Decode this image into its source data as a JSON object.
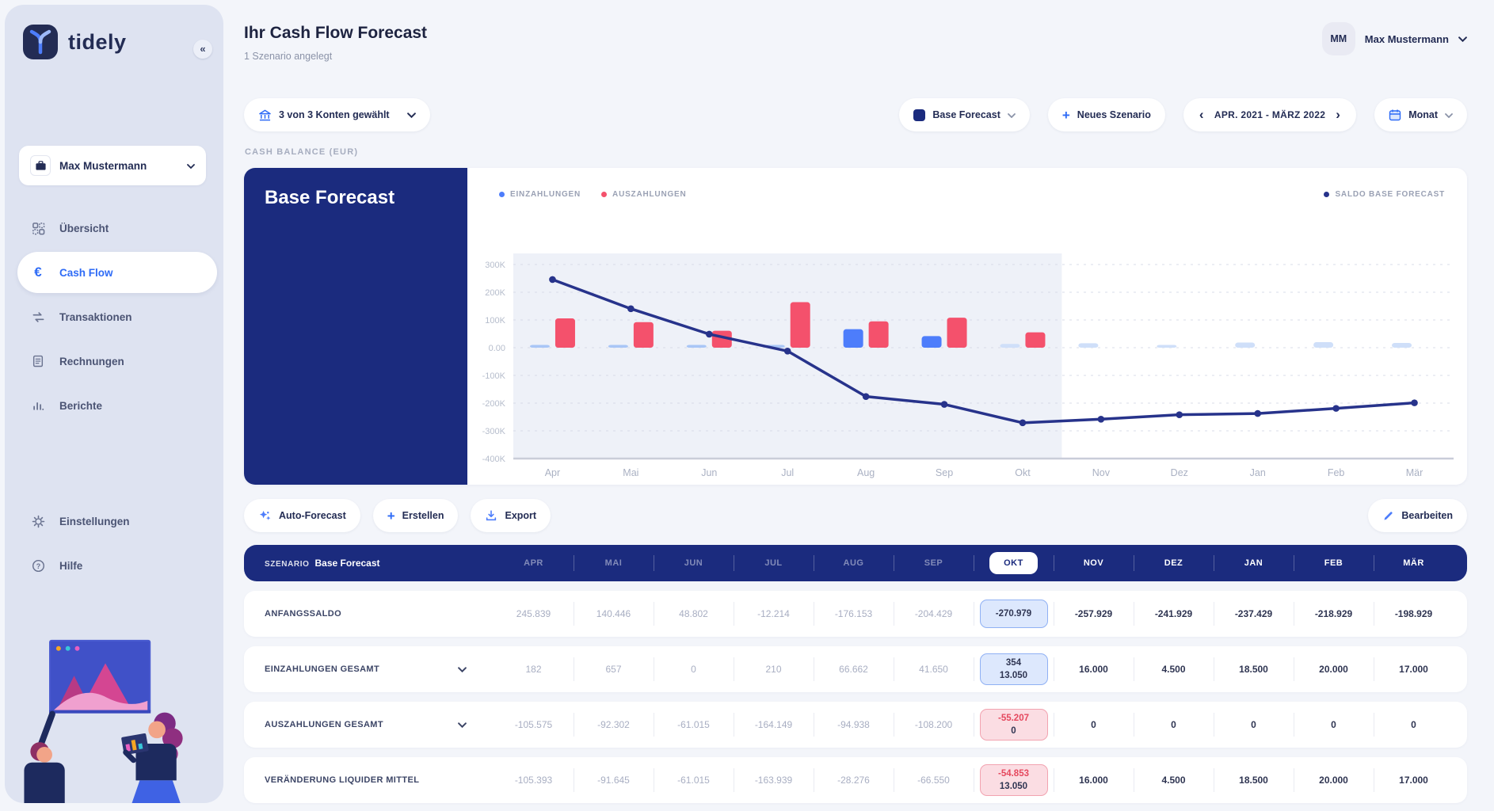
{
  "brand": {
    "name": "tidely"
  },
  "icons": {
    "collapse": "«",
    "plus": "+",
    "chevron_prev": "‹",
    "chevron_next": "›",
    "euro": "€",
    "scenario_swatch_color": "#1b2b7e"
  },
  "colors": {
    "navy": "#1b2b7e",
    "accent_blue": "#4d7dfb",
    "red": "#f4516c",
    "muted_bar_blue": "#cfdff9",
    "sidebar_bg": "#dee3f1"
  },
  "sidebar": {
    "workspace": {
      "label": "Max Mustermann"
    },
    "items": [
      {
        "id": "uebersicht",
        "label": "Übersicht",
        "icon": "grid-icon",
        "active": false
      },
      {
        "id": "cashflow",
        "label": "Cash Flow",
        "icon": "euro-icon",
        "active": true
      },
      {
        "id": "transaktionen",
        "label": "Transaktionen",
        "icon": "transfer-icon",
        "active": false
      },
      {
        "id": "rechnungen",
        "label": "Rechnungen",
        "icon": "invoice-icon",
        "active": false
      },
      {
        "id": "berichte",
        "label": "Berichte",
        "icon": "report-icon",
        "active": false
      }
    ],
    "footer_items": [
      {
        "id": "einstellungen",
        "label": "Einstellungen",
        "icon": "gear-icon",
        "active": false
      },
      {
        "id": "hilfe",
        "label": "Hilfe",
        "icon": "help-icon",
        "active": false
      }
    ]
  },
  "header": {
    "title": "Ihr Cash Flow Forecast",
    "subtitle": "1 Szenario angelegt",
    "user": {
      "initials": "MM",
      "name": "Max Mustermann"
    }
  },
  "toolbar": {
    "accounts": "3 von 3  Konten gewählt",
    "scenario": "Base Forecast",
    "new_scenario": "Neues Szenario",
    "date_range": "APR. 2021 - MÄRZ 2022",
    "granularity": "Monat"
  },
  "chart_section": {
    "label": "CASH BALANCE (EUR)",
    "panel_title": "Base Forecast",
    "legend_left": [
      {
        "label": "EINZAHLUNGEN",
        "color": "#4d7dfb"
      },
      {
        "label": "AUSZAHLUNGEN",
        "color": "#f4516c"
      }
    ],
    "legend_right": [
      {
        "label": "SALDO BASE FORECAST",
        "color": "#27338b"
      }
    ]
  },
  "chart_data": {
    "type": "combo",
    "x": [
      "Apr",
      "Mai",
      "Jun",
      "Jul",
      "Aug",
      "Sep",
      "Okt",
      "Nov",
      "Dez",
      "Jan",
      "Feb",
      "Mär"
    ],
    "series": [
      {
        "name": "Einzahlungen",
        "type": "bar",
        "values": [
          182,
          657,
          0,
          210,
          66662,
          41650,
          13404,
          16000,
          4500,
          18500,
          20000,
          17000
        ]
      },
      {
        "name": "Auszahlungen",
        "type": "bar",
        "values": [
          105575,
          92302,
          61015,
          164149,
          94938,
          108200,
          55207,
          0,
          0,
          0,
          0,
          0
        ]
      },
      {
        "name": "Saldo Base Forecast",
        "type": "line",
        "values": [
          245839,
          140446,
          48802,
          -12214,
          -176153,
          -204429,
          -270979,
          -257929,
          -241929,
          -237429,
          -218929,
          -198929
        ]
      }
    ],
    "ylim": [
      -400000,
      300000
    ],
    "yticks": [
      "300K",
      "200K",
      "100K",
      "0.00",
      "-100K",
      "-200K",
      "-300K",
      "-400K"
    ],
    "forecast_start_index": 7,
    "bar_muted_from_index": 6,
    "grid": "dashed",
    "legend_position": "top"
  },
  "actions": {
    "auto_forecast": "Auto-Forecast",
    "create": "Erstellen",
    "export": "Export",
    "edit": "Bearbeiten"
  },
  "table": {
    "scenario_label": "SZENARIO",
    "scenario_name": "Base Forecast",
    "months": [
      "APR",
      "MAI",
      "JUN",
      "JUL",
      "AUG",
      "SEP",
      "OKT",
      "NOV",
      "DEZ",
      "JAN",
      "FEB",
      "MÄR"
    ],
    "selected_month": "OKT",
    "past_month_count": 6,
    "rows": [
      {
        "label": "ANFANGSSALDO",
        "expandable": false,
        "past": [
          "245.839",
          "140.446",
          "48.802",
          "-12.214",
          "-176.153",
          "-204.429"
        ],
        "okt": {
          "style": "blue",
          "lines": [
            "-270.979"
          ]
        },
        "future": [
          "-257.929",
          "-241.929",
          "-237.429",
          "-218.929",
          "-198.929"
        ]
      },
      {
        "label": "EINZAHLUNGEN GESAMT",
        "expandable": true,
        "past": [
          "182",
          "657",
          "0",
          "210",
          "66.662",
          "41.650"
        ],
        "okt": {
          "style": "blue",
          "lines": [
            "354",
            "13.050"
          ]
        },
        "future": [
          "16.000",
          "4.500",
          "18.500",
          "20.000",
          "17.000"
        ]
      },
      {
        "label": "AUSZAHLUNGEN GESAMT",
        "expandable": true,
        "past": [
          "-105.575",
          "-92.302",
          "-61.015",
          "-164.149",
          "-94.938",
          "-108.200"
        ],
        "okt": {
          "style": "red",
          "lines": [
            "-55.207",
            "0"
          ]
        },
        "future": [
          "0",
          "0",
          "0",
          "0",
          "0"
        ]
      },
      {
        "label": "VERÄNDERUNG LIQUIDER MITTEL",
        "expandable": false,
        "past": [
          "-105.393",
          "-91.645",
          "-61.015",
          "-163.939",
          "-28.276",
          "-66.550"
        ],
        "okt": {
          "style": "red",
          "lines": [
            "-54.853",
            "13.050"
          ]
        },
        "future": [
          "16.000",
          "4.500",
          "18.500",
          "20.000",
          "17.000"
        ]
      }
    ]
  }
}
